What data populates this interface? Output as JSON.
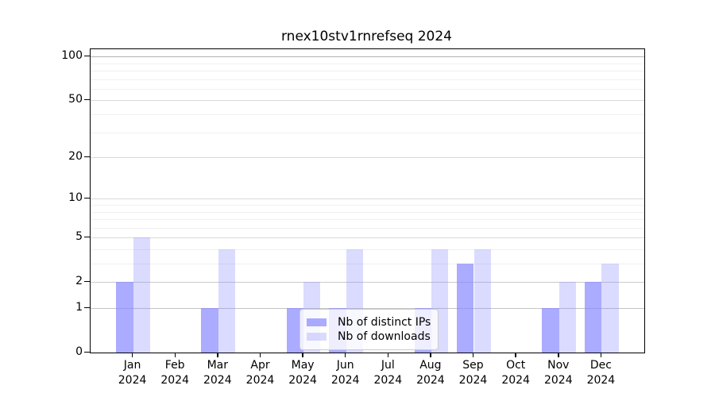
{
  "chart_data": {
    "type": "bar",
    "title": "rnex10stv1rnrefseq 2024",
    "year": "2024",
    "categories": [
      "Jan",
      "Feb",
      "Mar",
      "Apr",
      "May",
      "Jun",
      "Jul",
      "Aug",
      "Sep",
      "Oct",
      "Nov",
      "Dec"
    ],
    "series": [
      {
        "name": "Nb of distinct IPs",
        "color": "#8888ff",
        "alpha": 0.7,
        "values": [
          2,
          0,
          1,
          0,
          1,
          1,
          0,
          1,
          3,
          0,
          1,
          2
        ]
      },
      {
        "name": "Nb of downloads",
        "color": "#8888ff",
        "alpha": 0.3,
        "values": [
          5,
          0,
          4,
          0,
          2,
          4,
          0,
          4,
          4,
          0,
          2,
          3
        ]
      }
    ],
    "xlabel": "",
    "ylabel": "",
    "y_axis": {
      "scale": "log10(1+value)",
      "major_ticks": [
        0,
        1,
        2,
        5,
        10,
        20,
        50,
        100
      ],
      "minor_gridlines": [
        3,
        4,
        6,
        7,
        8,
        9,
        30,
        40,
        60,
        70,
        80,
        90
      ],
      "ylim": [
        0,
        114
      ]
    },
    "x_axis": {
      "xlim": [
        -1,
        12
      ]
    },
    "legend": {
      "position": "lower center"
    },
    "grid": true
  }
}
